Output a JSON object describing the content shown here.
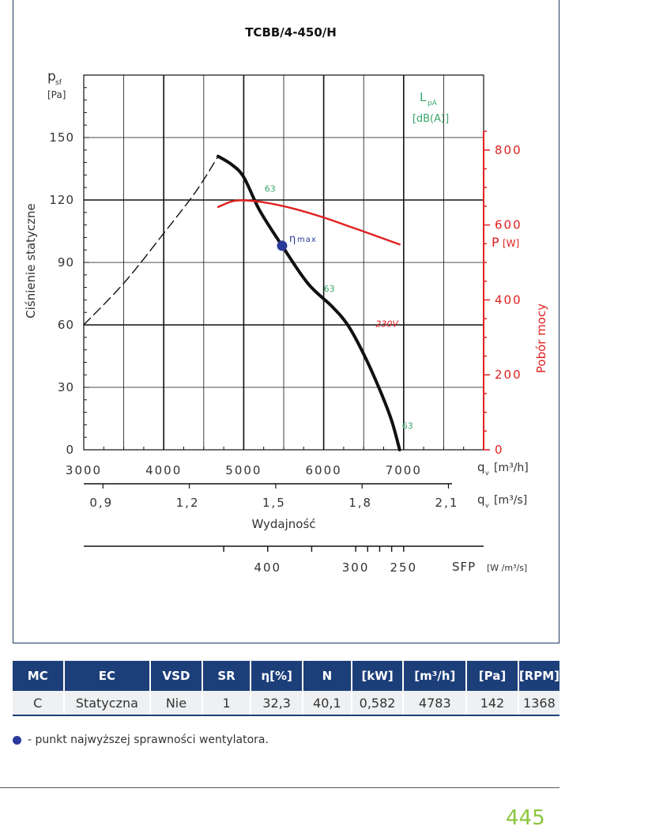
{
  "chart_data": {
    "type": "line",
    "title": "TCBB/4-450/H",
    "ylabel": "Ciśnienie statyczne",
    "ylabel_symbol": "p",
    "ylabel_sub": "sf",
    "ylabel_unit": "[Pa]",
    "xlabel": "Wydajność",
    "x_unit_h": "q",
    "x_unit_h_sub": "v",
    "x_unit_h_text": "[m³/h]",
    "x_unit_s_text": "[m³/s]",
    "y2label": "Pobór mocy",
    "y2_symbol": "P",
    "y2_unit": "[W]",
    "lpa_symbol": "L",
    "lpa_sub": "pA",
    "lpa_unit": "[dB(A)]",
    "xlim": [
      3000,
      8000
    ],
    "ylim": [
      0,
      180
    ],
    "y2lim": [
      0,
      1000
    ],
    "x_ticks": [
      "3000",
      "4000",
      "5000",
      "6000",
      "7000"
    ],
    "x_tick_values": [
      3000,
      4000,
      5000,
      6000,
      7000
    ],
    "y_ticks": [
      "0",
      "30",
      "60",
      "90",
      "120",
      "150"
    ],
    "y_tick_values": [
      0,
      30,
      60,
      90,
      120,
      150
    ],
    "y2_ticks": [
      "0",
      "200",
      "400",
      "600",
      "800"
    ],
    "y2_tick_values": [
      0,
      200,
      400,
      600,
      800
    ],
    "x2_ticks": [
      "0,9",
      "1,2",
      "1,5",
      "1,8",
      "2,1"
    ],
    "x2_tick_values_m3h": [
      3240,
      4320,
      5400,
      6480,
      7560
    ],
    "sfp_label": "SFP",
    "sfp_unit": "[W /m³/s]",
    "sfp_ticks": [
      "400",
      "300",
      "250"
    ],
    "sfp_tick_values_m3h": [
      5300,
      6400,
      7000
    ],
    "grid": true,
    "series": [
      {
        "role": "pressure",
        "style": "solid",
        "color": "#111111",
        "x": [
          4680,
          4850,
          5000,
          5200,
          5480,
          5800,
          6100,
          6300,
          6500,
          6700,
          6850,
          6950
        ],
        "y": [
          141,
          137,
          131,
          115,
          98,
          80,
          69,
          60,
          46,
          29,
          14,
          0
        ]
      },
      {
        "role": "pressure-stall",
        "style": "dashed",
        "color": "#111111",
        "x": [
          3000,
          3500,
          4000,
          4400,
          4680
        ],
        "y": [
          60,
          80,
          104,
          124,
          141
        ]
      },
      {
        "name": "230V",
        "role": "power",
        "axis": "y2",
        "color": "#e02020",
        "x": [
          4680,
          4900,
          5200,
          5600,
          6000,
          6400,
          6950
        ],
        "y": [
          648,
          665,
          662,
          645,
          620,
          590,
          548
        ]
      }
    ],
    "annotations": [
      {
        "text": "63",
        "x": 5260,
        "y": 124,
        "color": "#3aa56a"
      },
      {
        "text": "63",
        "x": 6000,
        "y": 76,
        "color": "#3aa56a"
      },
      {
        "text": "63",
        "x": 6980,
        "y": 10,
        "color": "#3aa56a"
      },
      {
        "text": "230V",
        "x": 6650,
        "y": 59,
        "color": "#e02020"
      }
    ],
    "eta_max": {
      "x": 5480,
      "y": 98,
      "label": "η",
      "label_sub": "max",
      "color": "#2a3a9a"
    }
  },
  "table": {
    "headers": [
      "MC",
      "EC",
      "VSD",
      "SR",
      "η[%]",
      "N",
      "[kW]",
      "[m³/h]",
      "[Pa]",
      "[RPM]"
    ],
    "row": [
      "C",
      "Statyczna",
      "Nie",
      "1",
      "32,3",
      "40,1",
      "0,582",
      "4783",
      "142",
      "1368"
    ]
  },
  "legend": {
    "text": "- punkt najwyższej sprawności wentylatora."
  },
  "page_number": "445",
  "colors": {
    "header_bg": "#1c3f7a",
    "accent_green": "#8cc63f",
    "power_red": "#e02020",
    "frame": "#1f3a5f"
  }
}
